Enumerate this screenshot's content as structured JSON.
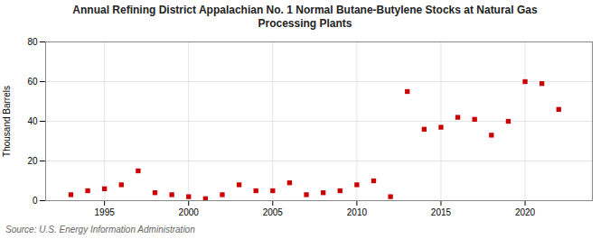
{
  "chart_data": {
    "type": "scatter",
    "title": "Annual Refining District Appalachian No. 1 Normal Butane-Butylene Stocks at Natural Gas\nProcessing Plants",
    "ylabel": "Thousand Barrels",
    "source": "Source: U.S. Energy Information Administration",
    "color": "#cc0000",
    "marker": "square",
    "grid": true,
    "xlim": [
      1991.5,
      2024
    ],
    "ylim": [
      0,
      80
    ],
    "xticks": [
      1995,
      2000,
      2005,
      2010,
      2015,
      2020
    ],
    "yticks": [
      0,
      20,
      40,
      60,
      80
    ],
    "x": [
      1993,
      1994,
      1995,
      1996,
      1997,
      1998,
      1999,
      2000,
      2001,
      2002,
      2003,
      2004,
      2005,
      2006,
      2007,
      2008,
      2009,
      2010,
      2011,
      2012,
      2013,
      2014,
      2015,
      2016,
      2017,
      2018,
      2019,
      2020,
      2021,
      2022
    ],
    "values": [
      3,
      5,
      6,
      8,
      15,
      4,
      3,
      2,
      1,
      3,
      8,
      5,
      5,
      9,
      3,
      4,
      5,
      8,
      10,
      2,
      55,
      36,
      37,
      42,
      41,
      33,
      40,
      60,
      59,
      46
    ]
  }
}
